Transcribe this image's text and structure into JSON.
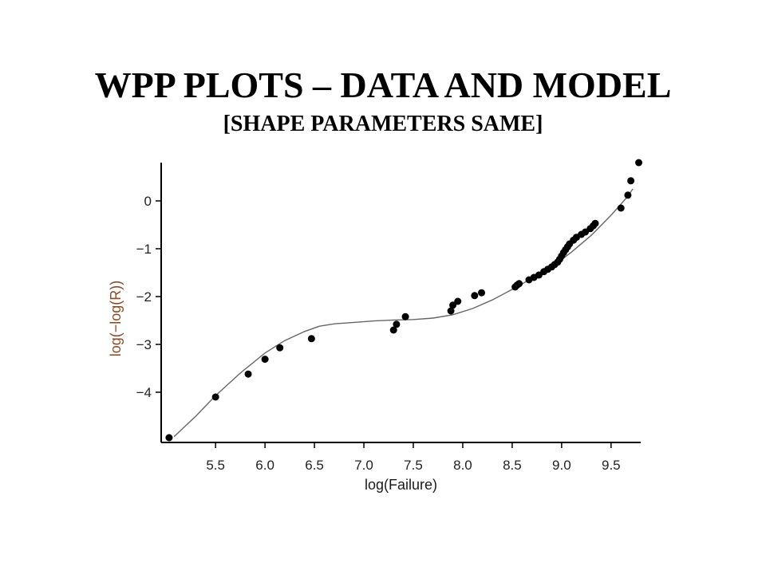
{
  "page": {
    "title": "WPP PLOTS – DATA AND MODEL",
    "subtitle": "[SHAPE PARAMETERS SAME]"
  },
  "chart_data": {
    "type": "scatter",
    "xlabel": "log(Failure)",
    "ylabel": "log(−log(R))",
    "xlim": [
      4.95,
      9.8
    ],
    "ylim": [
      -5.05,
      0.8
    ],
    "xticks": [
      5.5,
      6.0,
      6.5,
      7.0,
      7.5,
      8.0,
      8.5,
      9.0,
      9.5
    ],
    "xtick_labels": [
      "5.5",
      "6.0",
      "6.5",
      "7.0",
      "7.5",
      "8.0",
      "8.5",
      "9.0",
      "9.5"
    ],
    "yticks": [
      0,
      -1,
      -2,
      -3,
      -4
    ],
    "ytick_labels": [
      "0",
      "−1",
      "−2",
      "−3",
      "−4"
    ],
    "grid": false,
    "series": [
      {
        "kind": "points",
        "x": [
          5.03,
          5.5,
          5.83,
          6.0,
          6.15,
          6.47,
          7.3,
          7.33,
          7.42,
          7.88,
          7.9,
          7.95,
          8.12,
          8.19,
          8.53,
          8.55,
          8.57,
          8.67,
          8.72,
          8.77,
          8.82,
          8.86,
          8.9,
          8.93,
          8.96,
          8.98,
          9.0,
          9.02,
          9.04,
          9.06,
          9.08,
          9.12,
          9.15,
          9.2,
          9.24,
          9.29,
          9.32,
          9.34,
          9.6,
          9.67,
          9.7,
          9.78
        ],
        "y": [
          -4.95,
          -4.1,
          -3.62,
          -3.31,
          -3.07,
          -2.88,
          -2.7,
          -2.58,
          -2.42,
          -2.3,
          -2.18,
          -2.1,
          -1.98,
          -1.92,
          -1.8,
          -1.76,
          -1.73,
          -1.65,
          -1.6,
          -1.55,
          -1.48,
          -1.43,
          -1.38,
          -1.33,
          -1.28,
          -1.22,
          -1.15,
          -1.08,
          -1.02,
          -0.96,
          -0.9,
          -0.82,
          -0.76,
          -0.7,
          -0.65,
          -0.58,
          -0.52,
          -0.47,
          -0.15,
          0.12,
          0.42,
          0.8
        ]
      },
      {
        "kind": "line",
        "x": [
          5.08,
          5.3,
          5.5,
          5.75,
          6.0,
          6.2,
          6.4,
          6.55,
          6.7,
          6.9,
          7.1,
          7.3,
          7.5,
          7.7,
          7.9,
          8.1,
          8.3,
          8.5,
          8.7,
          8.9,
          9.1,
          9.3,
          9.5,
          9.65,
          9.72
        ],
        "y": [
          -4.93,
          -4.5,
          -4.07,
          -3.6,
          -3.18,
          -2.92,
          -2.73,
          -2.62,
          -2.57,
          -2.54,
          -2.51,
          -2.49,
          -2.48,
          -2.45,
          -2.38,
          -2.25,
          -2.07,
          -1.85,
          -1.62,
          -1.38,
          -1.07,
          -0.72,
          -0.3,
          0.05,
          0.25
        ]
      }
    ]
  }
}
